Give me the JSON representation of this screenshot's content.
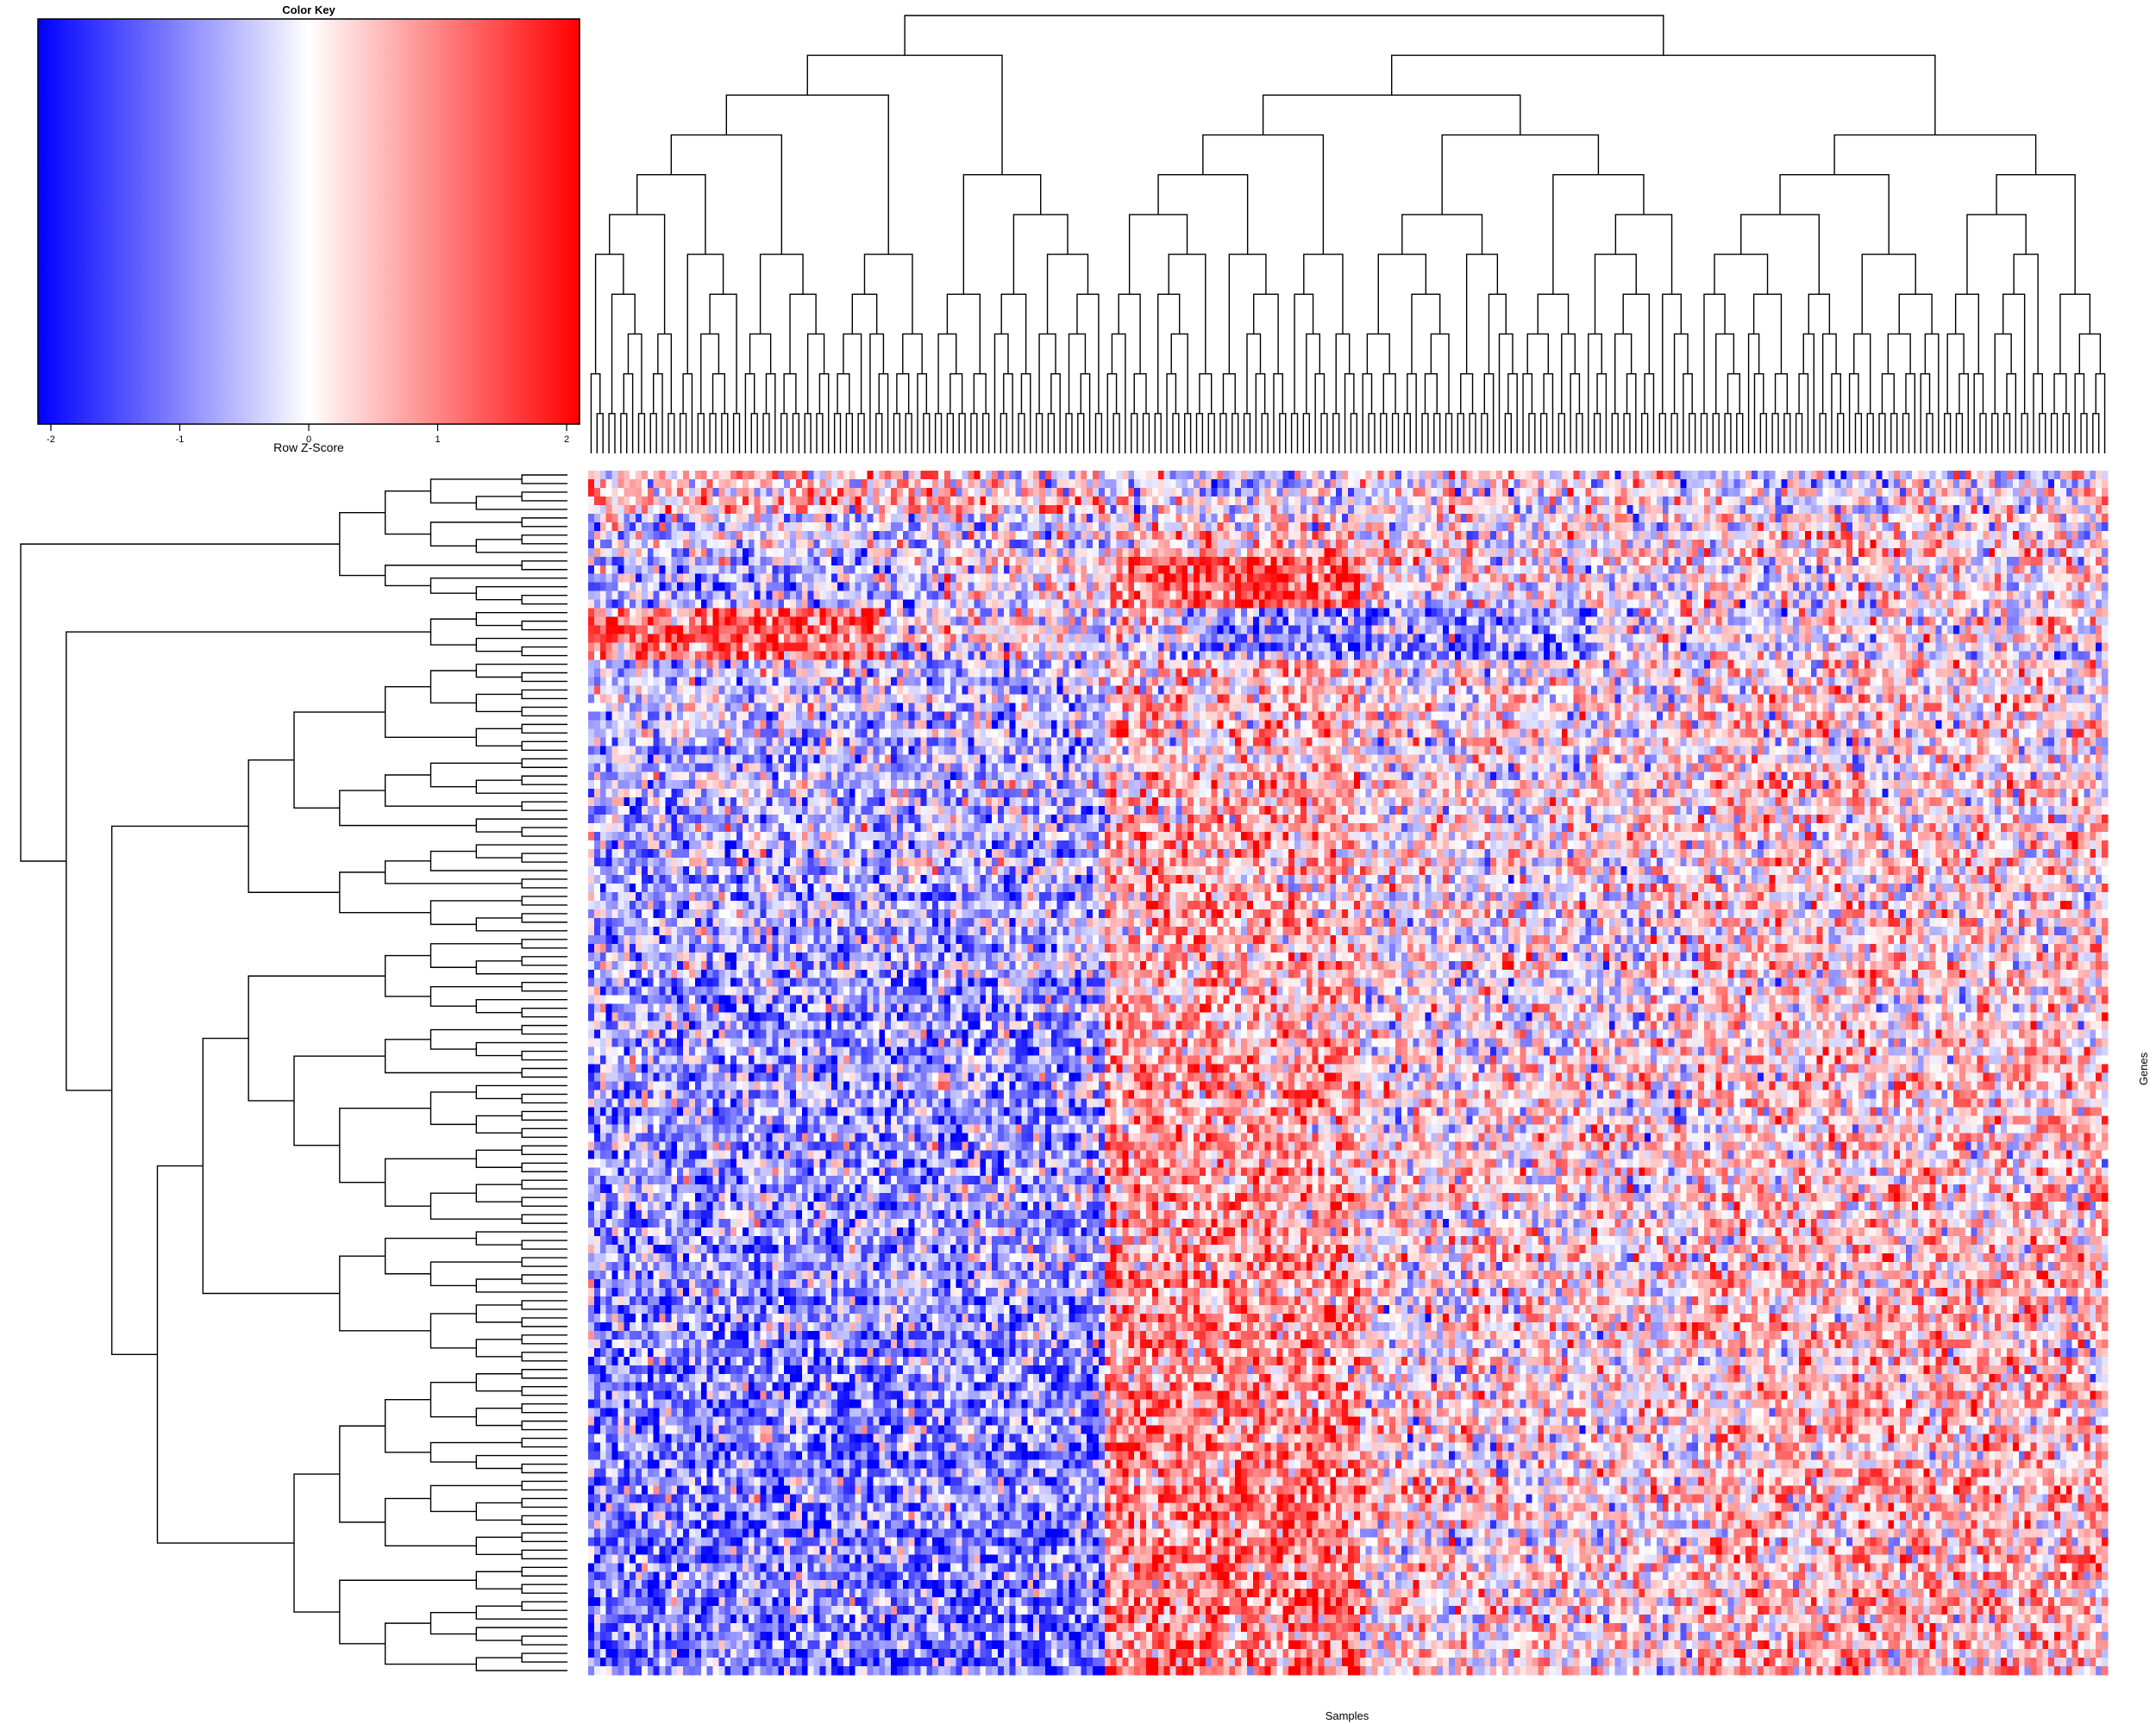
{
  "chart_data": {
    "type": "heatmap",
    "key": {
      "title": "Color Key",
      "xlabel": "Row Z-Score",
      "range": [
        -2.1,
        2.1
      ],
      "ticks": [
        -2,
        -1,
        0,
        1,
        2
      ],
      "tick_labels": [
        "-2",
        "-1",
        "0",
        "1",
        "2"
      ],
      "colors": {
        "low": "#0000ff",
        "mid": "#ffffff",
        "high": "#ff0000"
      }
    },
    "xlabel": "Samples",
    "ylabel": "Genes",
    "n_samples": 256,
    "n_genes": 140,
    "z_range": [
      -2.1,
      2.1
    ],
    "column_dendrogram": true,
    "row_dendrogram": true,
    "column_clusters": [
      {
        "first": 1,
        "last": 87,
        "mean_z": -0.9
      },
      {
        "first": 88,
        "last": 130,
        "mean_z": 0.9
      },
      {
        "first": 131,
        "last": 187,
        "mean_z": 0.15
      },
      {
        "first": 188,
        "last": 256,
        "mean_z": 0.45
      }
    ],
    "row_groups": [
      {
        "first": 1,
        "last": 10,
        "mean_z": 0.0
      },
      {
        "first": 11,
        "last": 16,
        "mean_z": 0.1
      },
      {
        "first": 17,
        "last": 22,
        "mean_z": -0.1
      },
      {
        "first": 23,
        "last": 140,
        "mean_z": 0.0
      }
    ]
  }
}
